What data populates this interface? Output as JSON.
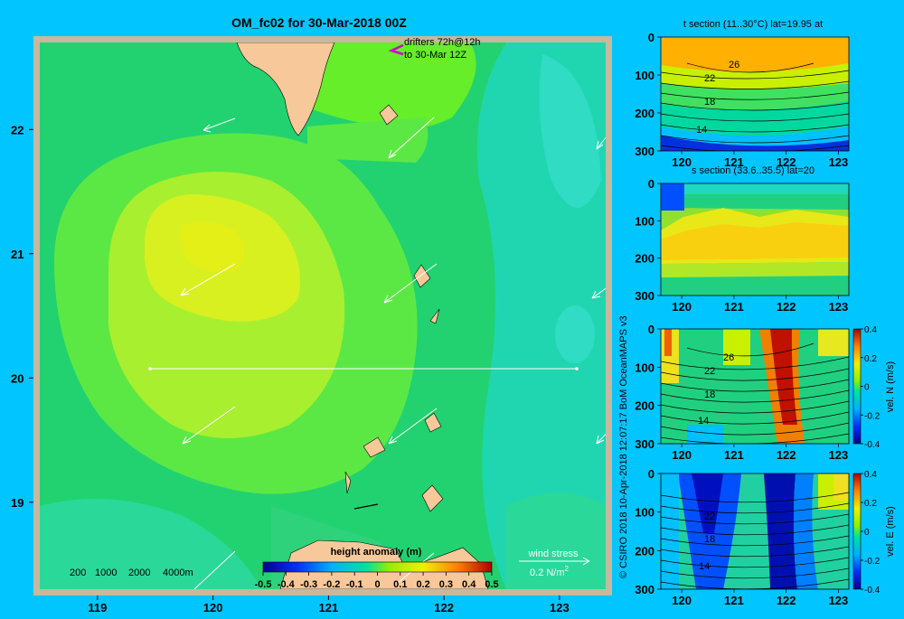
{
  "title": "OM_fc02 for 30-Mar-2018 00Z",
  "drifters_line1": "drifters 72h@12h",
  "drifters_line2": "to 30-Mar 12Z",
  "copyright": "© CSIRO 2018   10-Apr-2018 12:07:17 BoM OceanMAPS v3",
  "colors": {
    "background": "#00c5ff",
    "frame": "#c7b8a0",
    "land": "#f7c89a",
    "drifter": "#d000d0"
  },
  "chart_data": [
    {
      "type": "heatmap",
      "name": "map",
      "xlim": [
        118.5,
        123.4
      ],
      "ylim": [
        18.3,
        22.7
      ],
      "xticks": [
        "119",
        "120",
        "121",
        "122",
        "123"
      ],
      "yticks": [
        "19",
        "20",
        "21",
        "22"
      ],
      "colorbar": {
        "label": "height anomaly  (m)",
        "min": -0.5,
        "max": 0.5,
        "ticks": [
          "-0.5",
          "-0.4",
          "-0.3",
          "-0.2",
          "-0.1",
          "0",
          "0.1",
          "0.2",
          "0.3",
          "0.4",
          "0.5"
        ]
      },
      "depth_labels": [
        "200",
        "1000",
        "2000",
        "4000m"
      ],
      "wind_stress_label": "wind stress",
      "wind_stress_scale": "0.2 N/m",
      "wind_stress_exp": "2",
      "section_line": {
        "lat": 20,
        "lon_from": 119.5,
        "lon_to": 123.2
      }
    },
    {
      "type": "heatmap",
      "name": "t-section",
      "title": "t section (11..30°C) lat=19.95 at",
      "xlim": [
        119.6,
        123.2
      ],
      "ylim": [
        300,
        0
      ],
      "xticks": [
        "120",
        "121",
        "122",
        "123"
      ],
      "yticks": [
        "0",
        "100",
        "200",
        "300"
      ],
      "contour_labels": [
        "26",
        "22",
        "18",
        "14"
      ]
    },
    {
      "type": "heatmap",
      "name": "s-section",
      "title": "s section (33.6..35.5) lat=20",
      "xlim": [
        119.6,
        123.2
      ],
      "ylim": [
        300,
        0
      ],
      "xticks": [
        "120",
        "121",
        "122",
        "123"
      ],
      "yticks": [
        "0",
        "100",
        "200",
        "300"
      ]
    },
    {
      "type": "heatmap",
      "name": "v-section",
      "xlim": [
        119.6,
        123.2
      ],
      "ylim": [
        300,
        0
      ],
      "xticks": [
        "120",
        "121",
        "122",
        "123"
      ],
      "yticks": [
        "0",
        "100",
        "200",
        "300"
      ],
      "contour_labels": [
        "26",
        "22",
        "18",
        "14"
      ],
      "colorbar": {
        "label": "vel. N  (m/s)",
        "min": -0.4,
        "max": 0.4,
        "ticks": [
          "0.4",
          "0.2",
          "0",
          "-0.2",
          "-0.4"
        ]
      }
    },
    {
      "type": "heatmap",
      "name": "u-section",
      "xlim": [
        119.6,
        123.2
      ],
      "ylim": [
        300,
        0
      ],
      "xticks": [
        "120",
        "121",
        "122",
        "123"
      ],
      "yticks": [
        "0",
        "100",
        "200",
        "300"
      ],
      "contour_labels": [
        "22",
        "18",
        "14"
      ],
      "colorbar": {
        "label": "vel. E  (m/s)",
        "min": -0.4,
        "max": 0.4,
        "ticks": [
          "0.4",
          "0.2",
          "0",
          "-0.2",
          "-0.4"
        ]
      }
    }
  ]
}
